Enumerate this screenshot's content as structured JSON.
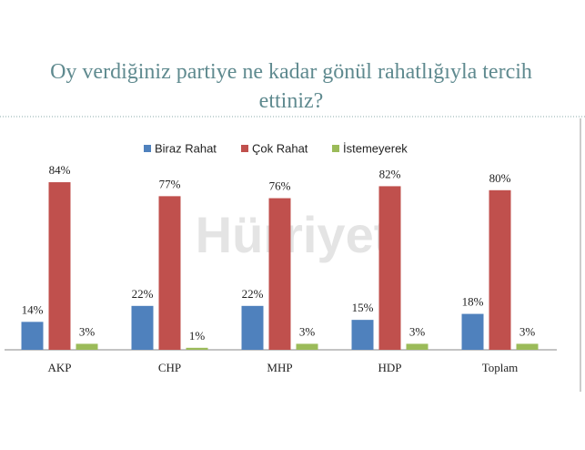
{
  "chart_data": {
    "type": "bar",
    "title": "Oy verdiğiniz partiye ne kadar gönül rahatlığıyla tercih ettiniz?",
    "watermark": "Hürriyet",
    "categories": [
      "AKP",
      "CHP",
      "MHP",
      "HDP",
      "Toplam"
    ],
    "series": [
      {
        "name": "Biraz Rahat",
        "color": "#4f81bd",
        "values": [
          14,
          22,
          22,
          15,
          18
        ],
        "value_labels": [
          "14%",
          "22%",
          "22%",
          "15%",
          "18%"
        ]
      },
      {
        "name": "Çok Rahat",
        "color": "#c0504d",
        "values": [
          84,
          77,
          76,
          82,
          80
        ],
        "value_labels": [
          "84%",
          "77%",
          "76%",
          "82%",
          "80%"
        ]
      },
      {
        "name": "İstemeyerek",
        "color": "#9bbb59",
        "values": [
          3,
          1,
          3,
          3,
          3
        ],
        "value_labels": [
          "3%",
          "1%",
          "3%",
          "3%",
          "3%"
        ]
      }
    ],
    "legend": "top"
  }
}
